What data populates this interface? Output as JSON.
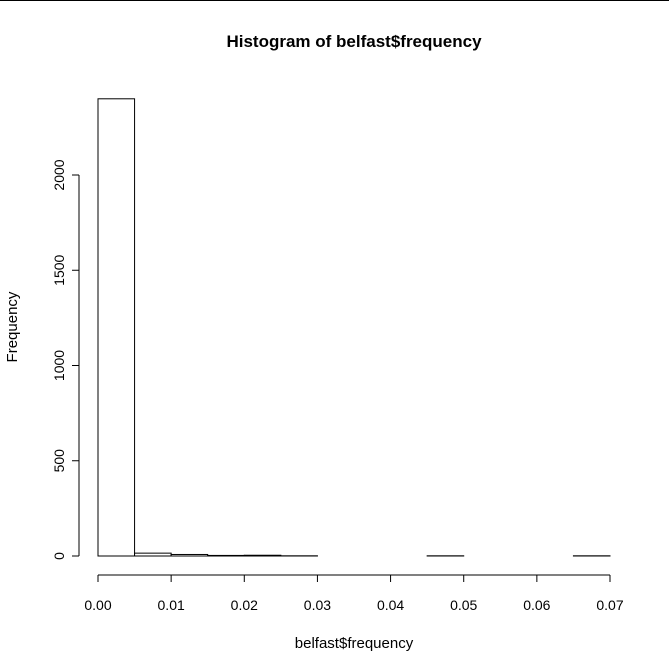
{
  "chart_data": {
    "type": "bar",
    "title": "Histogram of belfast$frequency",
    "xlabel": "belfast$frequency",
    "ylabel": "Frequency",
    "xlim": [
      0,
      0.07
    ],
    "ylim": [
      0,
      2400
    ],
    "x_ticks": [
      "0.00",
      "0.01",
      "0.02",
      "0.03",
      "0.04",
      "0.05",
      "0.06",
      "0.07"
    ],
    "y_ticks": [
      "0",
      "500",
      "1000",
      "1500",
      "2000"
    ],
    "bins": [
      {
        "x0": 0.0,
        "x1": 0.005,
        "count": 2400
      },
      {
        "x0": 0.005,
        "x1": 0.01,
        "count": 15
      },
      {
        "x0": 0.01,
        "x1": 0.015,
        "count": 8
      },
      {
        "x0": 0.015,
        "x1": 0.02,
        "count": 3
      },
      {
        "x0": 0.02,
        "x1": 0.025,
        "count": 4
      },
      {
        "x0": 0.025,
        "x1": 0.03,
        "count": 1
      },
      {
        "x0": 0.03,
        "x1": 0.035,
        "count": 0
      },
      {
        "x0": 0.035,
        "x1": 0.04,
        "count": 0
      },
      {
        "x0": 0.04,
        "x1": 0.045,
        "count": 0
      },
      {
        "x0": 0.045,
        "x1": 0.05,
        "count": 1
      },
      {
        "x0": 0.05,
        "x1": 0.055,
        "count": 0
      },
      {
        "x0": 0.055,
        "x1": 0.06,
        "count": 0
      },
      {
        "x0": 0.06,
        "x1": 0.065,
        "count": 0
      },
      {
        "x0": 0.065,
        "x1": 0.07,
        "count": 1
      }
    ],
    "bar_fill": "#ffffff",
    "bar_stroke": "#000000",
    "grid": false,
    "legend": "none"
  }
}
